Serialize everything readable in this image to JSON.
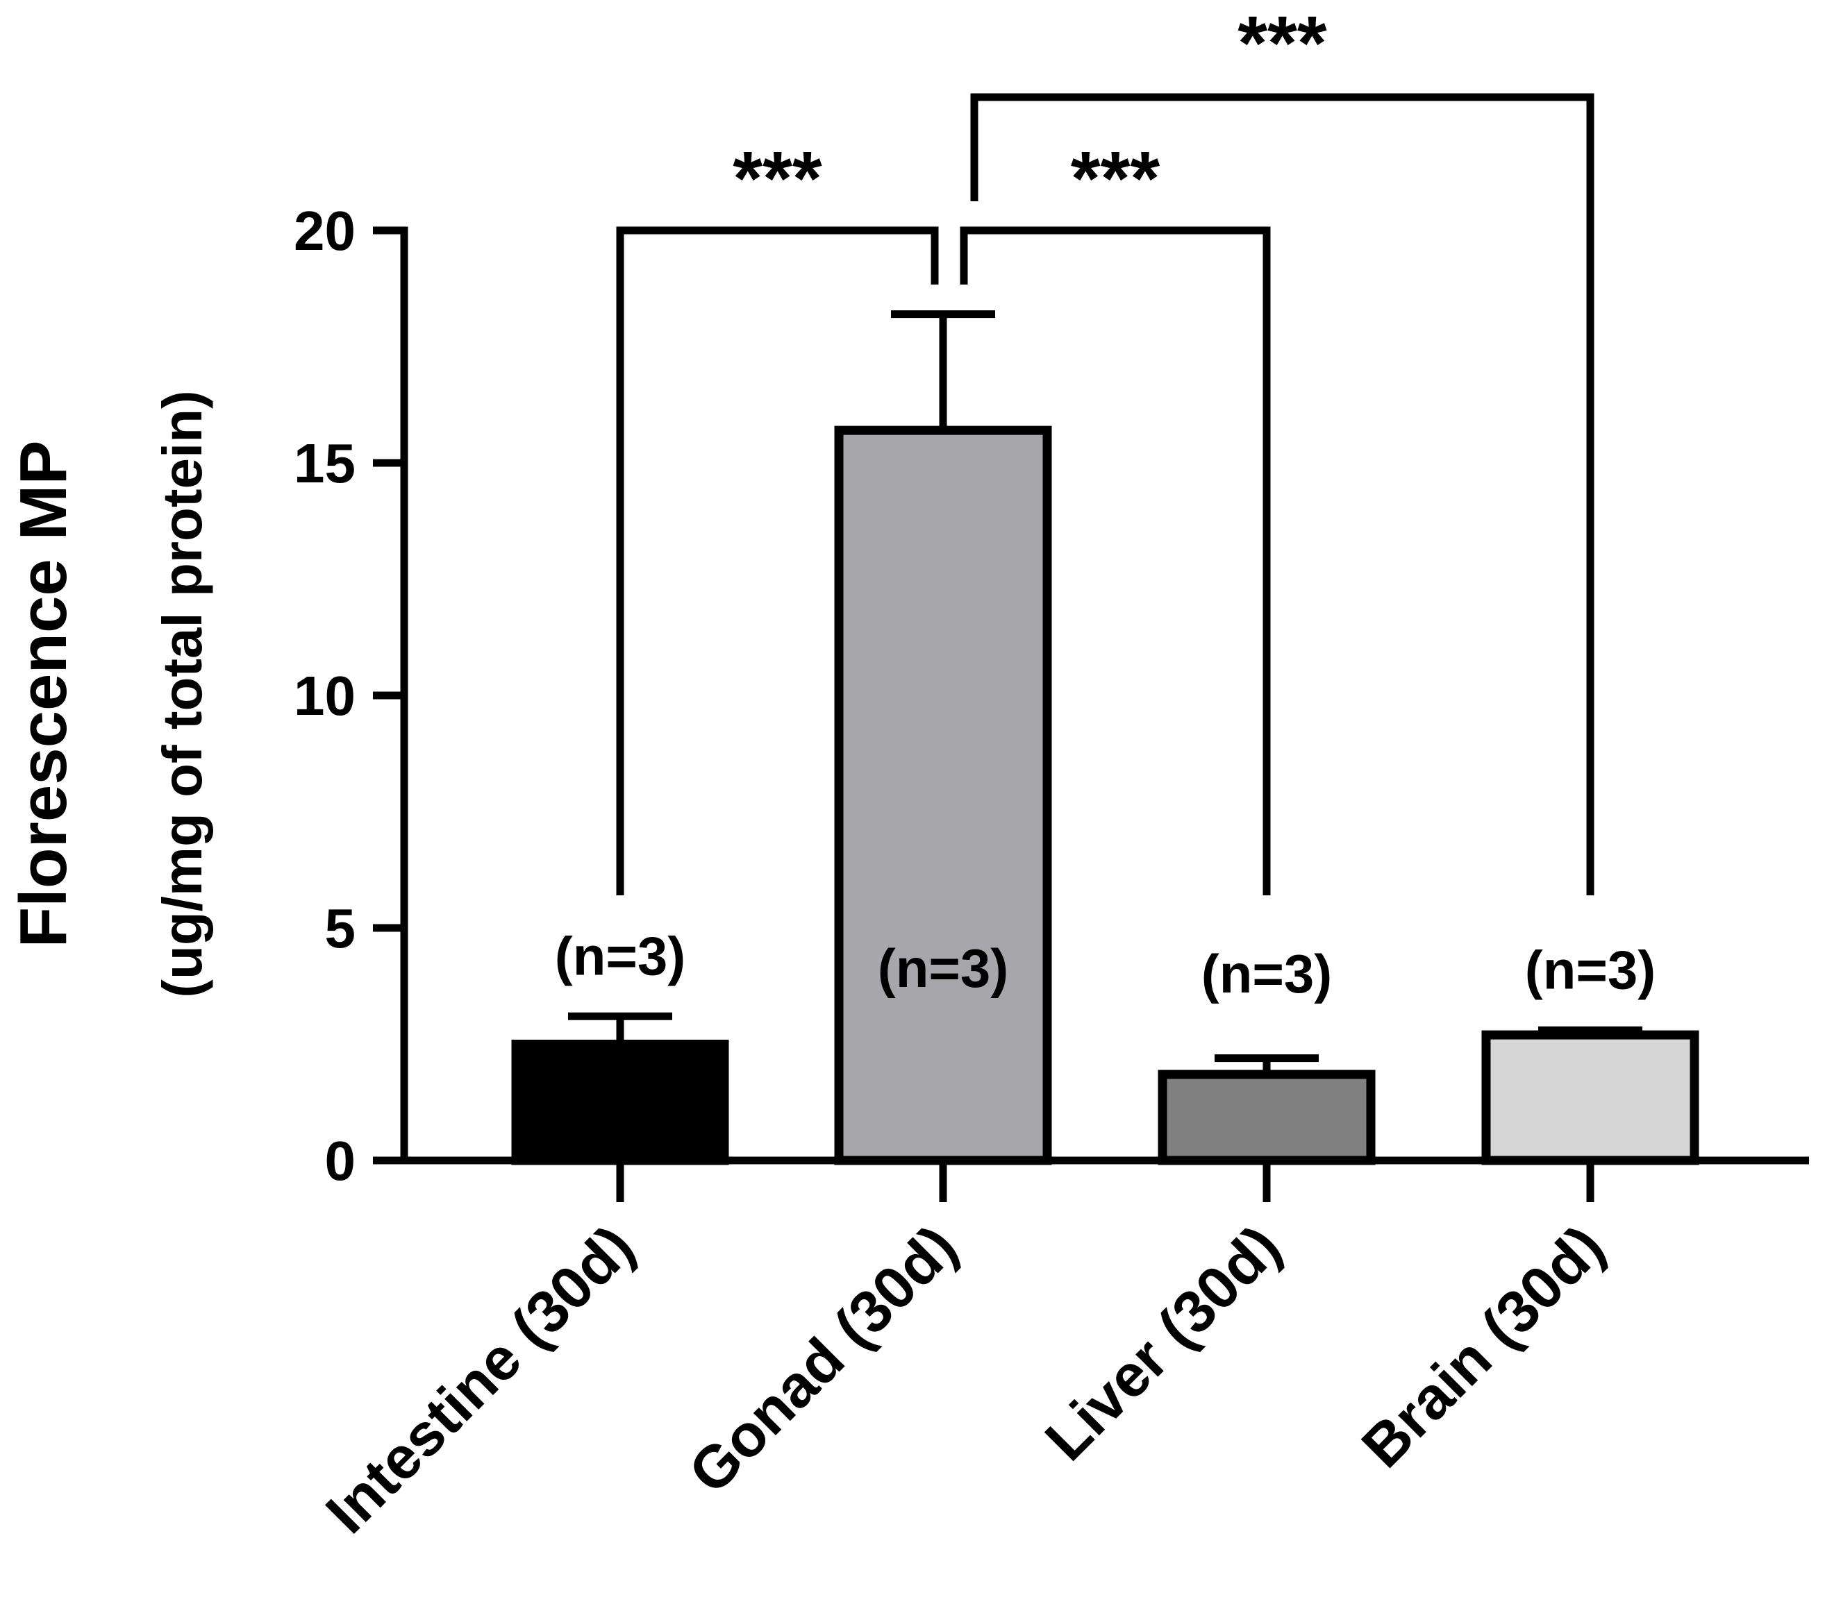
{
  "chart_data": {
    "type": "bar",
    "title": "",
    "ylabel_line1": "Florescence MP",
    "ylabel_line2": "(ug/mg of total protein)",
    "xlabel": "",
    "ylim": [
      0,
      20
    ],
    "yticks": [
      0,
      5,
      10,
      15,
      20
    ],
    "grid": false,
    "legend": "none",
    "categories": [
      "Intestine (30d)",
      "Gonad (30d)",
      "Liver (30d)",
      "Brain (30d)"
    ],
    "values": [
      2.5,
      15.7,
      1.85,
      2.7
    ],
    "error_upper": [
      0.6,
      2.5,
      0.35,
      0.1
    ],
    "colors": [
      "#000000",
      "#a6a6ab",
      "#808080",
      "#d6d6d6"
    ],
    "n_labels": [
      "(n=3)",
      "(n=3)",
      "(n=3)",
      "(n=3)"
    ],
    "significance": [
      {
        "from": "Gonad (30d)",
        "to": "Intestine (30d)",
        "label": "***"
      },
      {
        "from": "Gonad (30d)",
        "to": "Liver (30d)",
        "label": "***"
      },
      {
        "from": "Gonad (30d)",
        "to": "Brain (30d)",
        "label": "***"
      }
    ]
  }
}
